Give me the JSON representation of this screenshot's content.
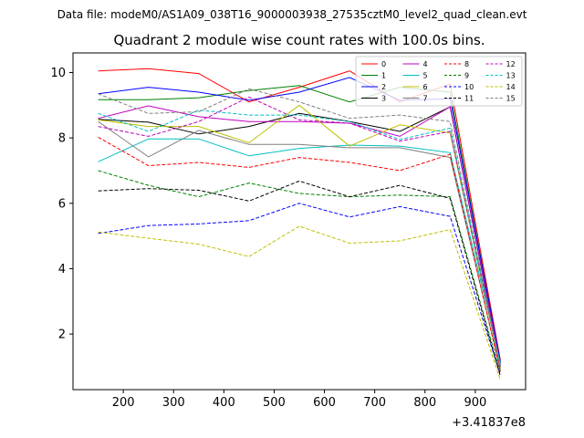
{
  "figure": {
    "suptitle": "Data file: modeM0/AS1A09_038T16_9000003938_27535cztM0_level2_quad_clean.evt"
  },
  "chart_data": {
    "type": "line",
    "title": "Quadrant 2 module wise count rates with 100.0s bins.",
    "xlabel": "",
    "ylabel": "",
    "x_offset_label": "+3.41837e8",
    "xlim": [
      100,
      1000
    ],
    "ylim": [
      0.3,
      10.6
    ],
    "xticks": [
      200,
      300,
      400,
      500,
      600,
      700,
      800,
      900
    ],
    "yticks": [
      2,
      4,
      6,
      8,
      10
    ],
    "grid": false,
    "legend_position": "top-right",
    "legend_columns": 4,
    "x": [
      150,
      250,
      350,
      450,
      550,
      650,
      750,
      850,
      950
    ],
    "series": [
      {
        "name": "0",
        "color": "#ff0000",
        "dash": "solid",
        "values": [
          10.05,
          10.12,
          9.97,
          9.1,
          9.55,
          10.05,
          9.1,
          9.65,
          1.2
        ]
      },
      {
        "name": "1",
        "color": "#008000",
        "dash": "solid",
        "values": [
          9.17,
          9.17,
          9.23,
          9.45,
          9.6,
          9.1,
          9.55,
          9.4,
          1.1
        ]
      },
      {
        "name": "2",
        "color": "#0000ff",
        "dash": "solid",
        "values": [
          9.35,
          9.55,
          9.4,
          9.15,
          9.4,
          9.85,
          9.15,
          9.2,
          1.15
        ]
      },
      {
        "name": "3",
        "color": "#000000",
        "dash": "solid",
        "values": [
          8.57,
          8.48,
          8.12,
          8.35,
          8.75,
          8.5,
          8.2,
          8.95,
          1.0
        ]
      },
      {
        "name": "4",
        "color": "#bf00bf",
        "dash": "solid",
        "values": [
          8.6,
          8.98,
          8.65,
          8.5,
          8.5,
          8.45,
          8.05,
          8.95,
          1.05
        ]
      },
      {
        "name": "5",
        "color": "#00bfbf",
        "dash": "solid",
        "values": [
          7.27,
          7.97,
          7.97,
          7.45,
          7.68,
          7.78,
          7.75,
          7.55,
          1.1
        ]
      },
      {
        "name": "6",
        "color": "#bfbf00",
        "dash": "solid",
        "values": [
          8.55,
          8.35,
          8.35,
          7.85,
          9.0,
          7.75,
          8.4,
          8.15,
          0.95
        ]
      },
      {
        "name": "7",
        "color": "#808080",
        "dash": "solid",
        "values": [
          8.5,
          7.42,
          8.23,
          7.8,
          7.8,
          7.7,
          7.7,
          7.4,
          0.9
        ]
      },
      {
        "name": "8",
        "color": "#ff0000",
        "dash": "dashed",
        "values": [
          8.02,
          7.15,
          7.25,
          7.1,
          7.4,
          7.25,
          7.0,
          7.5,
          0.85
        ]
      },
      {
        "name": "9",
        "color": "#008000",
        "dash": "dashed",
        "values": [
          7.0,
          6.55,
          6.2,
          6.62,
          6.3,
          6.2,
          6.25,
          6.2,
          0.8
        ]
      },
      {
        "name": "10",
        "color": "#0000ff",
        "dash": "dashed",
        "values": [
          5.08,
          5.32,
          5.37,
          5.47,
          6.0,
          5.58,
          5.9,
          5.6,
          0.75
        ]
      },
      {
        "name": "11",
        "color": "#000000",
        "dash": "dashed",
        "values": [
          6.38,
          6.45,
          6.4,
          6.07,
          6.68,
          6.2,
          6.55,
          6.15,
          0.7
        ]
      },
      {
        "name": "12",
        "color": "#bf00bf",
        "dash": "dashed",
        "values": [
          8.35,
          8.05,
          8.5,
          9.25,
          8.55,
          8.45,
          7.9,
          8.2,
          1.0
        ]
      },
      {
        "name": "13",
        "color": "#00bfbf",
        "dash": "dashed",
        "values": [
          8.75,
          8.2,
          8.85,
          8.7,
          8.7,
          8.5,
          7.95,
          8.3,
          1.0
        ]
      },
      {
        "name": "14",
        "color": "#bfbf00",
        "dash": "dashed",
        "values": [
          5.12,
          4.93,
          4.75,
          4.37,
          5.3,
          4.78,
          4.85,
          5.2,
          0.6
        ]
      },
      {
        "name": "15",
        "color": "#808080",
        "dash": "dashed",
        "values": [
          9.35,
          8.75,
          8.8,
          9.5,
          9.1,
          8.6,
          8.7,
          8.5,
          1.0
        ]
      }
    ]
  }
}
